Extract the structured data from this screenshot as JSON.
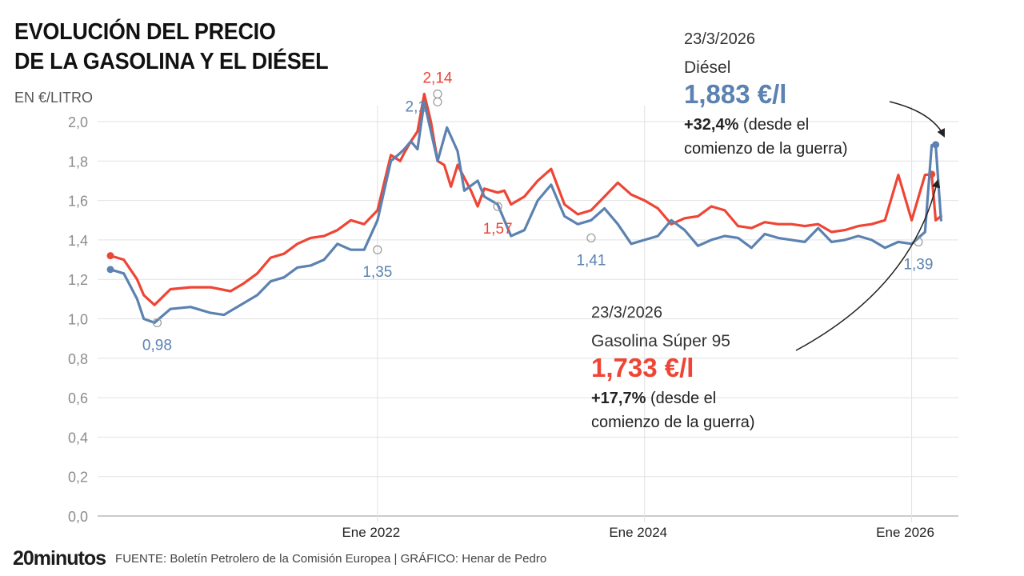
{
  "header": {
    "title_line1": "EVOLUCIÓN DEL PRECIO",
    "title_line2": "DE LA GASOLINA Y EL DIÉSEL",
    "unit": "EN €/LITRO"
  },
  "annotations": {
    "diesel": {
      "date": "23/3/2026",
      "name": "Diésel",
      "value": "1,883 €/l",
      "change_bold": "+32,4%",
      "change_rest": " (desde el",
      "change_line2": "comienzo de la guerra)"
    },
    "gasoline": {
      "date": "23/3/2026",
      "name": "Gasolina Súper 95",
      "value": "1,733 €/l",
      "change_bold": "+17,7%",
      "change_rest": " (desde el",
      "change_line2": "comienzo de la guerra)"
    }
  },
  "footer": {
    "logo": "20minutos",
    "credit": "FUENTE: Boletín Petrolero de la Comisión Europea  |  GRÁFICO: Henar de Pedro"
  },
  "colors": {
    "diesel": "#5b82b0",
    "gasoline": "#ee4535",
    "grid": "#e2e2e2",
    "axis_text": "#8c8c8c"
  },
  "chart_data": {
    "type": "line",
    "title": "EVOLUCIÓN DEL PRECIO DE LA GASOLINA Y EL DIÉSEL",
    "ylabel": "EN €/LITRO",
    "ylim": [
      0,
      2.0
    ],
    "yticks": [
      0,
      0.2,
      0.4,
      0.6,
      0.8,
      1.0,
      1.2,
      1.4,
      1.6,
      1.8,
      2.0
    ],
    "ytick_labels": [
      "0,0",
      "0,2",
      "0,4",
      "0,6",
      "0,8",
      "1,0",
      "1,2",
      "1,4",
      "1,6",
      "1,8",
      "2,0"
    ],
    "xlim": [
      2020.0,
      2026.35
    ],
    "xticks": [
      2022.0,
      2024.0,
      2026.0
    ],
    "xtick_labels": [
      "Ene 2022",
      "Ene 2024",
      "Ene 2026"
    ],
    "grid": true,
    "legend": "none",
    "series": [
      {
        "key": "gasoline",
        "x": [
          2020.0,
          2020.1,
          2020.2,
          2020.25,
          2020.33,
          2020.45,
          2020.6,
          2020.75,
          2020.9,
          2021.0,
          2021.1,
          2021.2,
          2021.3,
          2021.4,
          2021.5,
          2021.6,
          2021.7,
          2021.8,
          2021.9,
          2022.0,
          2022.1,
          2022.17,
          2022.2,
          2022.25,
          2022.3,
          2022.35,
          2022.4,
          2022.45,
          2022.5,
          2022.55,
          2022.6,
          2022.7,
          2022.75,
          2022.8,
          2022.9,
          2022.95,
          2023.0,
          2023.1,
          2023.2,
          2023.3,
          2023.4,
          2023.5,
          2023.6,
          2023.7,
          2023.8,
          2023.9,
          2024.0,
          2024.1,
          2024.2,
          2024.3,
          2024.4,
          2024.5,
          2024.6,
          2024.7,
          2024.8,
          2024.9,
          2025.0,
          2025.1,
          2025.2,
          2025.3,
          2025.4,
          2025.5,
          2025.6,
          2025.7,
          2025.8,
          2025.9,
          2026.0,
          2026.1,
          2026.15,
          2026.18,
          2026.22
        ],
        "values": [
          1.32,
          1.3,
          1.2,
          1.12,
          1.07,
          1.15,
          1.16,
          1.16,
          1.14,
          1.18,
          1.23,
          1.31,
          1.33,
          1.38,
          1.41,
          1.42,
          1.45,
          1.5,
          1.48,
          1.55,
          1.83,
          1.8,
          1.84,
          1.9,
          1.95,
          2.14,
          2.0,
          1.8,
          1.78,
          1.67,
          1.78,
          1.65,
          1.57,
          1.66,
          1.64,
          1.65,
          1.58,
          1.62,
          1.7,
          1.76,
          1.58,
          1.53,
          1.55,
          1.62,
          1.69,
          1.63,
          1.6,
          1.56,
          1.48,
          1.51,
          1.52,
          1.57,
          1.55,
          1.47,
          1.46,
          1.49,
          1.48,
          1.48,
          1.47,
          1.48,
          1.44,
          1.45,
          1.47,
          1.48,
          1.5,
          1.73,
          1.5,
          1.73,
          1.733,
          1.5,
          1.52
        ]
      },
      {
        "key": "diesel",
        "x": [
          2020.0,
          2020.1,
          2020.2,
          2020.25,
          2020.33,
          2020.45,
          2020.6,
          2020.75,
          2020.85,
          2020.9,
          2021.0,
          2021.1,
          2021.2,
          2021.3,
          2021.4,
          2021.5,
          2021.6,
          2021.7,
          2021.8,
          2021.9,
          2022.0,
          2022.1,
          2022.17,
          2022.2,
          2022.25,
          2022.3,
          2022.35,
          2022.45,
          2022.52,
          2022.6,
          2022.65,
          2022.75,
          2022.8,
          2022.9,
          2022.95,
          2023.0,
          2023.1,
          2023.2,
          2023.3,
          2023.4,
          2023.5,
          2023.6,
          2023.7,
          2023.8,
          2023.9,
          2024.0,
          2024.1,
          2024.2,
          2024.3,
          2024.4,
          2024.5,
          2024.6,
          2024.7,
          2024.8,
          2024.9,
          2025.0,
          2025.1,
          2025.2,
          2025.3,
          2025.4,
          2025.5,
          2025.6,
          2025.7,
          2025.8,
          2025.9,
          2026.0,
          2026.1,
          2026.15,
          2026.18,
          2026.22
        ],
        "values": [
          1.25,
          1.23,
          1.1,
          1.0,
          0.98,
          1.05,
          1.06,
          1.03,
          1.02,
          1.04,
          1.08,
          1.12,
          1.19,
          1.21,
          1.26,
          1.27,
          1.3,
          1.38,
          1.35,
          1.35,
          1.5,
          1.8,
          1.84,
          1.86,
          1.9,
          1.86,
          2.1,
          1.8,
          1.97,
          1.85,
          1.65,
          1.7,
          1.62,
          1.58,
          1.5,
          1.42,
          1.45,
          1.6,
          1.68,
          1.52,
          1.48,
          1.5,
          1.56,
          1.48,
          1.38,
          1.4,
          1.42,
          1.5,
          1.45,
          1.37,
          1.4,
          1.42,
          1.41,
          1.36,
          1.43,
          1.41,
          1.4,
          1.39,
          1.46,
          1.39,
          1.4,
          1.42,
          1.4,
          1.36,
          1.39,
          1.38,
          1.44,
          1.88,
          1.883,
          1.5
        ]
      }
    ],
    "annotations": [
      {
        "series": "gasoline",
        "x": 2022.45,
        "y": 2.14,
        "label": "2,14",
        "pos": "above"
      },
      {
        "series": "gasoline",
        "x": 2022.9,
        "y": 1.57,
        "label": "1,57",
        "pos": "below"
      },
      {
        "series": "diesel",
        "x": 2020.35,
        "y": 0.98,
        "label": "0,98",
        "pos": "below"
      },
      {
        "series": "diesel",
        "x": 2022.0,
        "y": 1.35,
        "label": "1,35",
        "pos": "below"
      },
      {
        "series": "diesel",
        "x": 2022.45,
        "y": 2.1,
        "label": "2,1",
        "pos": "left"
      },
      {
        "series": "diesel",
        "x": 2023.6,
        "y": 1.41,
        "label": "1,41",
        "pos": "below"
      },
      {
        "series": "diesel",
        "x": 2026.05,
        "y": 1.39,
        "label": "1,39",
        "pos": "below"
      }
    ]
  }
}
